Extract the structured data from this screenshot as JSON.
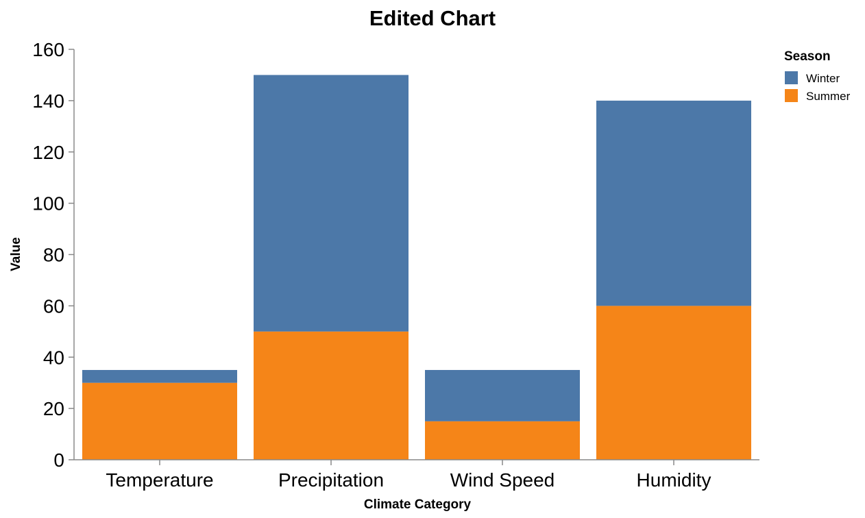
{
  "chart_data": {
    "type": "bar",
    "stacked": true,
    "title": "Edited Chart",
    "xlabel": "Climate Category",
    "ylabel": "Value",
    "categories": [
      "Temperature",
      "Precipitation",
      "Wind Speed",
      "Humidity"
    ],
    "series": [
      {
        "name": "Summer",
        "values": [
          30,
          50,
          15,
          60
        ],
        "color": "#f58518"
      },
      {
        "name": "Winter",
        "values": [
          5,
          100,
          20,
          80
        ],
        "color": "#4c78a8"
      }
    ],
    "ylim": [
      0,
      160
    ],
    "yticks": [
      0,
      20,
      40,
      60,
      80,
      100,
      120,
      140,
      160
    ],
    "grid": false,
    "legend": {
      "title": "Season",
      "placement": "top-right",
      "entries": [
        {
          "name": "Winter",
          "color": "#4c78a8"
        },
        {
          "name": "Summer",
          "color": "#f58518"
        }
      ]
    }
  }
}
